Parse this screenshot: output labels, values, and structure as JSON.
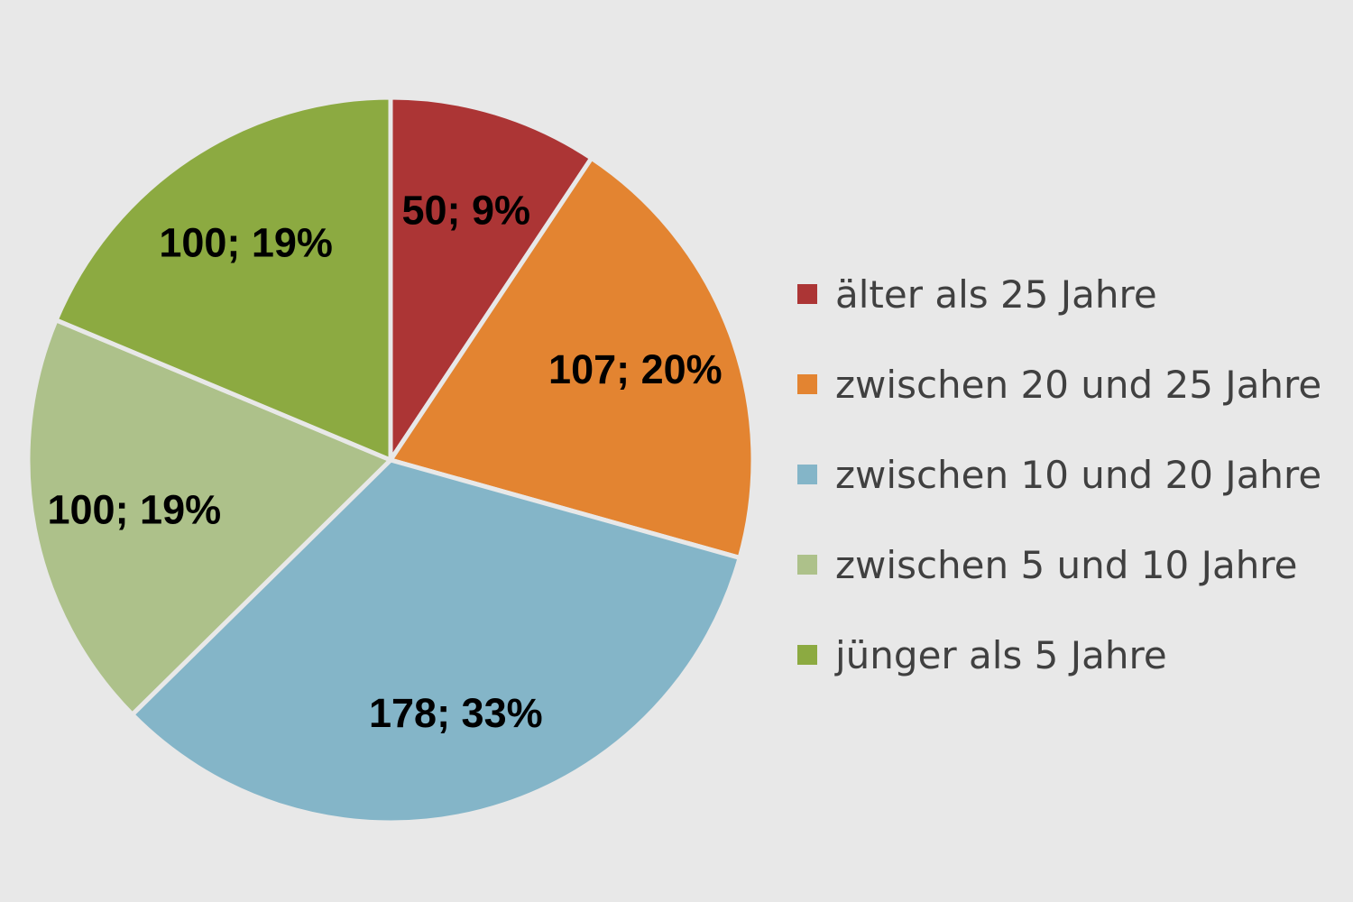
{
  "chart_data": {
    "type": "pie",
    "title": "",
    "legend_position": "right",
    "slices": [
      {
        "label": "älter als 25 Jahre",
        "value": 50,
        "percent": 9,
        "data_label": "50; 9%",
        "color": "#ac3535"
      },
      {
        "label": "zwischen 20 und 25 Jahre",
        "value": 107,
        "percent": 20,
        "data_label": "107; 20%",
        "color": "#e38431"
      },
      {
        "label": "zwischen 10 und 20 Jahre",
        "value": 178,
        "percent": 33,
        "data_label": "178; 33%",
        "color": "#84b5c8"
      },
      {
        "label": "zwischen 5 und 10 Jahre",
        "value": 100,
        "percent": 19,
        "data_label": "100; 19%",
        "color": "#adc18a"
      },
      {
        "label": "jünger als 5 Jahre",
        "value": 100,
        "percent": 19,
        "data_label": "100; 19%",
        "color": "#8caa41"
      }
    ]
  }
}
